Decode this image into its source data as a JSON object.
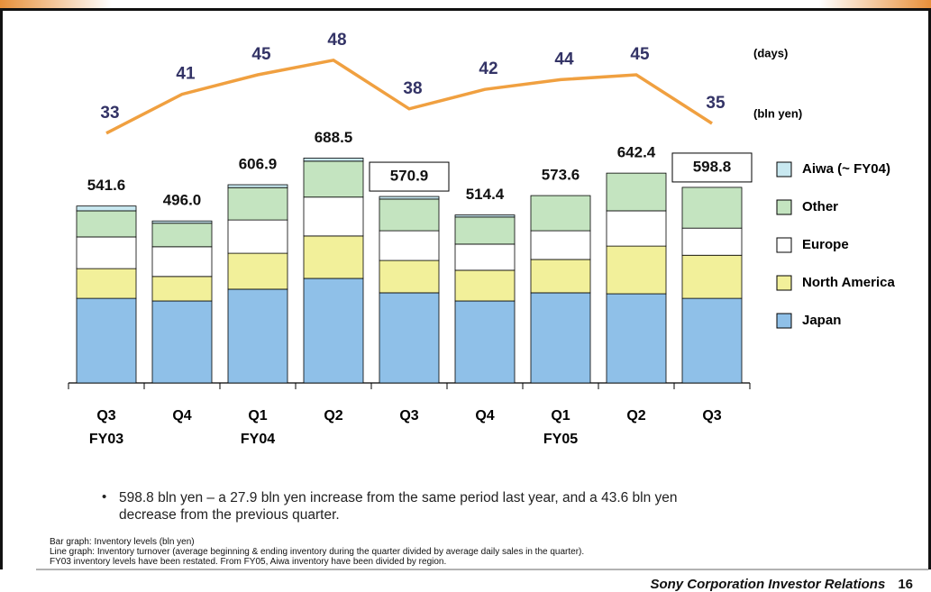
{
  "chart_data": {
    "type": "bar",
    "categories": [
      "Q3",
      "Q4",
      "Q1",
      "Q2",
      "Q3",
      "Q4",
      "Q1",
      "Q2",
      "Q3"
    ],
    "fiscal_years": [
      "FY03",
      null,
      "FY04",
      null,
      null,
      null,
      "FY05",
      null,
      null
    ],
    "ylim": [
      0,
      800
    ],
    "y2lim": [
      10,
      50
    ],
    "y_unit": "(bln yen)",
    "y2_unit": "(days)",
    "series": [
      {
        "name": "Japan",
        "color": "#8fc0e8",
        "values": [
          259,
          251,
          287,
          320,
          276,
          251,
          276,
          273,
          259
        ]
      },
      {
        "name": "North America",
        "color": "#f2f09a",
        "values": [
          91,
          75,
          110,
          130,
          99,
          94,
          102,
          146,
          132
        ]
      },
      {
        "name": "Europe",
        "color": "#ffffff",
        "values": [
          97,
          91,
          102,
          119,
          91,
          80,
          88,
          108,
          83
        ]
      },
      {
        "name": "Other",
        "color": "#c4e4c0",
        "values": [
          80,
          72,
          99,
          110,
          97,
          83,
          107.6,
          115.4,
          124.8
        ]
      },
      {
        "name": "Aiwa (~ FY04)",
        "color": "#c8e8f0",
        "values": [
          14.6,
          7,
          8.9,
          9.5,
          7.9,
          6.4,
          null,
          null,
          null
        ]
      },
      {
        "type": "line",
        "axis": "y2",
        "color": "#f0a040",
        "values": [
          33,
          41,
          45,
          48,
          38,
          42,
          44,
          45,
          35
        ]
      }
    ],
    "totals": {
      "values": [
        541.6,
        496,
        606.9,
        688.5,
        570.9,
        514.4,
        573.6,
        642.4,
        598.8
      ],
      "value_labels": [
        "541.6",
        "496.0",
        "606.9",
        "688.5",
        "570.9",
        "514.4",
        "573.6",
        "642.4",
        "598.8"
      ],
      "boxed": [
        false,
        false,
        false,
        false,
        true,
        false,
        false,
        false,
        true
      ]
    }
  },
  "bullet": "598.8 bln yen – a 27.9 bln yen increase from the same period last year, and a 43.6 bln yen decrease from the previous quarter.",
  "notes": [
    "Bar graph: Inventory levels (bln yen)",
    "Line graph: Inventory turnover (average beginning & ending inventory during the quarter divided by average daily sales in the quarter).",
    "FY03 inventory levels have been restated.  From FY05, Aiwa inventory have been divided by region."
  ],
  "footer": {
    "text": "Sony Corporation Investor Relations",
    "page": "16"
  }
}
